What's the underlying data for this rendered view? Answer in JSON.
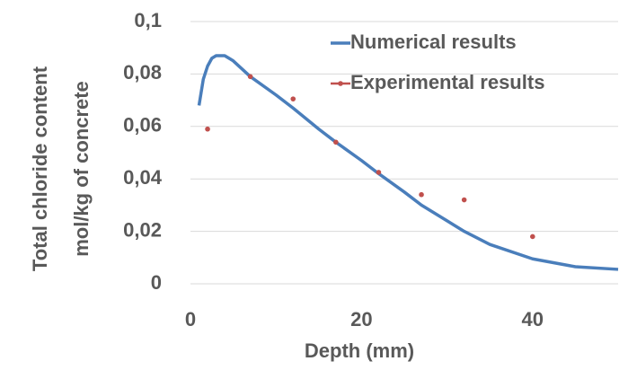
{
  "chart_data": {
    "type": "line",
    "xlabel": "Depth (mm)",
    "ylabel": [
      "Total chloride content",
      "mol/kg of concrete"
    ],
    "xlim": [
      0,
      50
    ],
    "xticks": [
      0,
      20,
      40
    ],
    "ylim": [
      0,
      0.1
    ],
    "yticks": [
      {
        "value": 0,
        "label": "0"
      },
      {
        "value": 0.02,
        "label": "0,02"
      },
      {
        "value": 0.04,
        "label": "0,04"
      },
      {
        "value": 0.06,
        "label": "0,06"
      },
      {
        "value": 0.08,
        "label": "0,08"
      },
      {
        "value": 0.1,
        "label": "0,1"
      }
    ],
    "grid": true,
    "legend": "top-right",
    "series": [
      {
        "name": "Numerical results",
        "color": "#4a7ebb",
        "mode": "line",
        "x": [
          1,
          1.5,
          2,
          2.5,
          3,
          4,
          5,
          7,
          10,
          12,
          15,
          17,
          20,
          22,
          25,
          27,
          30,
          32,
          35,
          40,
          45,
          50
        ],
        "values": [
          0.068,
          0.078,
          0.083,
          0.086,
          0.087,
          0.087,
          0.085,
          0.079,
          0.072,
          0.067,
          0.059,
          0.054,
          0.047,
          0.042,
          0.035,
          0.03,
          0.024,
          0.02,
          0.015,
          0.0095,
          0.0065,
          0.0055
        ]
      },
      {
        "name": "Experimental results",
        "color": "#c0504d",
        "mode": "markers",
        "x": [
          2,
          7,
          12,
          17,
          22,
          27,
          32,
          40
        ],
        "values": [
          0.059,
          0.079,
          0.0705,
          0.054,
          0.0425,
          0.034,
          0.032,
          0.018
        ]
      }
    ]
  }
}
